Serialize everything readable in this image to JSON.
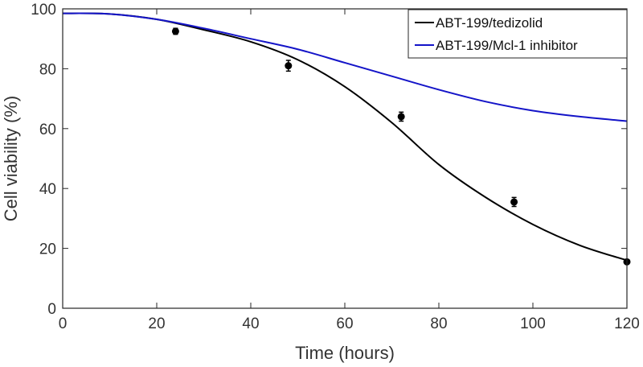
{
  "chart_data": {
    "type": "line",
    "xlabel": "Time (hours)",
    "ylabel": "Cell viability (%)",
    "xlim": [
      0,
      120
    ],
    "ylim": [
      0,
      100
    ],
    "xticks": [
      0,
      20,
      40,
      60,
      80,
      100,
      120
    ],
    "yticks": [
      0,
      20,
      40,
      60,
      80,
      100
    ],
    "grid": false,
    "legend_position": "top-right",
    "series": [
      {
        "name": "ABT-199/tedizolid",
        "kind": "line",
        "color": "#000000",
        "x": [
          0,
          10,
          20,
          30,
          40,
          50,
          60,
          70,
          80,
          90,
          100,
          110,
          120
        ],
        "y": [
          98.5,
          98.3,
          96.5,
          93.0,
          89.0,
          83.0,
          74.0,
          62.0,
          48.0,
          37.0,
          28.0,
          21.0,
          16.0
        ]
      },
      {
        "name": "ABT-199/Mcl-1 inhibitor",
        "kind": "line",
        "color": "#1414c8",
        "x": [
          0,
          10,
          20,
          30,
          40,
          50,
          60,
          70,
          80,
          90,
          100,
          110,
          120
        ],
        "y": [
          98.5,
          98.3,
          96.5,
          93.5,
          90.0,
          86.5,
          82.0,
          77.5,
          73.0,
          69.0,
          66.0,
          64.0,
          62.5
        ]
      }
    ],
    "markers": {
      "color": "#000000",
      "x": [
        24,
        48,
        72,
        96,
        120
      ],
      "y": [
        92.5,
        81.0,
        64.0,
        35.5,
        15.5
      ],
      "err": [
        1.0,
        1.8,
        1.5,
        1.5,
        0
      ]
    }
  }
}
